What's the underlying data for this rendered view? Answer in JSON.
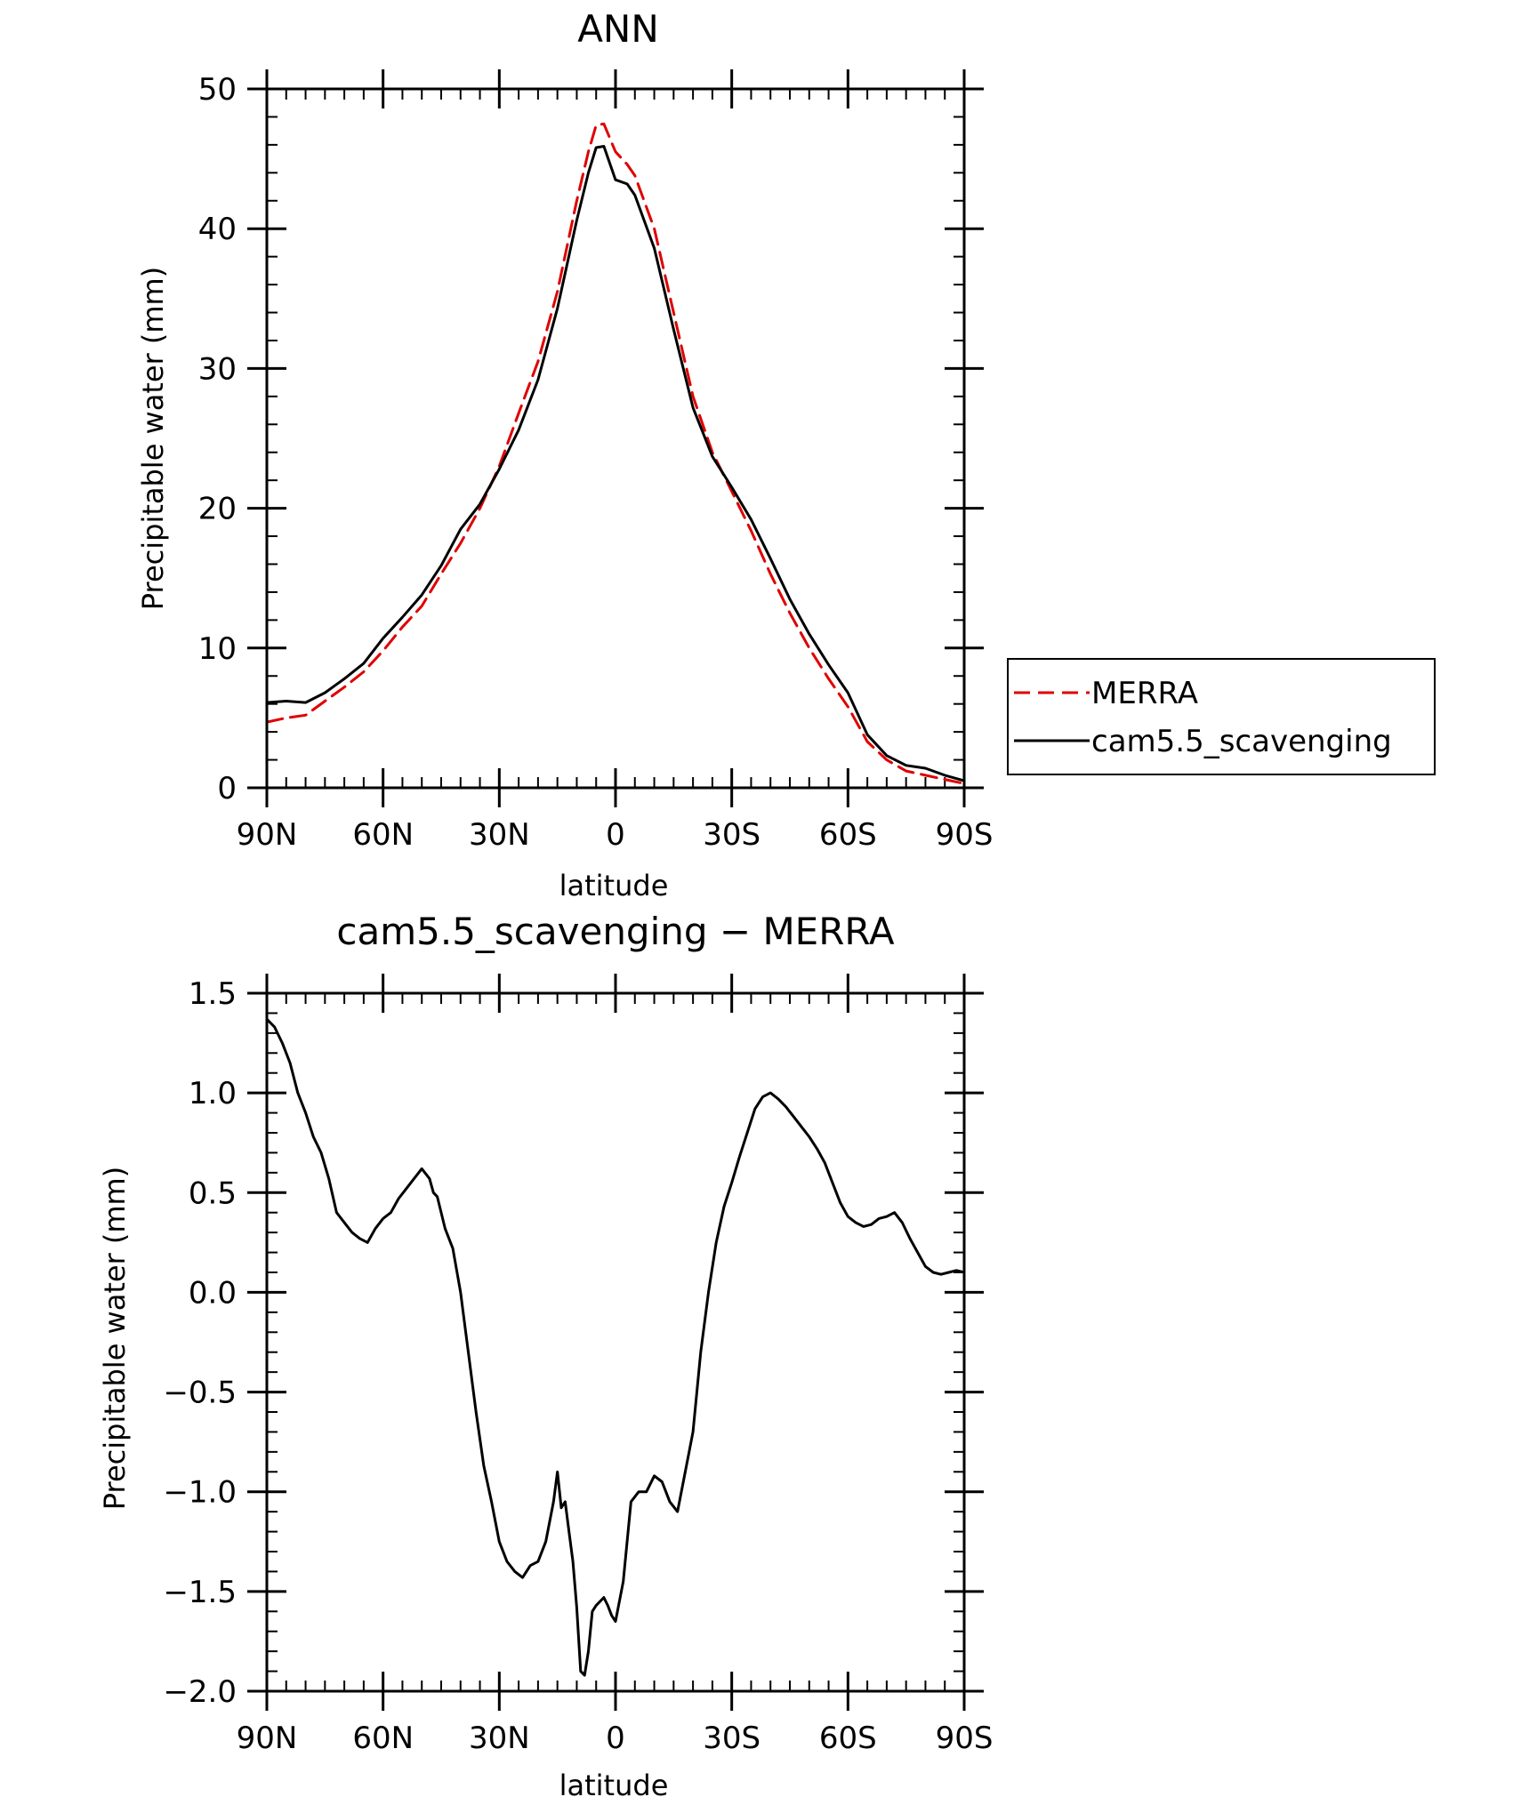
{
  "chart_data": [
    {
      "type": "line",
      "title": "ANN",
      "xlabel": "latitude",
      "ylabel": "Precipitable water (mm)",
      "xlim": [
        90,
        -90
      ],
      "ylim": [
        0,
        50
      ],
      "x_ticks": [
        90,
        60,
        30,
        0,
        -30,
        -60,
        -90
      ],
      "x_tick_labels": [
        "90N",
        "60N",
        "30N",
        "0",
        "30S",
        "60S",
        "90S"
      ],
      "y_ticks": [
        0,
        10,
        20,
        30,
        40,
        50
      ],
      "y_tick_labels": [
        "0",
        "10",
        "20",
        "30",
        "40",
        "50"
      ],
      "grid": false,
      "legend": "right",
      "series": [
        {
          "name": "MERRA",
          "color": "#e00000",
          "dash": "dashed",
          "x": [
            90,
            85,
            80,
            75,
            70,
            65,
            60,
            55,
            50,
            45,
            40,
            35,
            30,
            25,
            20,
            15,
            10,
            7,
            5,
            3,
            0,
            -3,
            -5,
            -10,
            -15,
            -20,
            -25,
            -30,
            -35,
            -40,
            -45,
            -50,
            -55,
            -60,
            -65,
            -70,
            -75,
            -80,
            -85,
            -90
          ],
          "values": [
            4.7,
            5.0,
            5.2,
            6.2,
            7.2,
            8.3,
            9.8,
            11.5,
            13.0,
            15.3,
            17.5,
            20.0,
            23.0,
            26.8,
            30.5,
            35.5,
            42.0,
            45.5,
            47.4,
            47.5,
            45.5,
            44.6,
            43.8,
            40.0,
            34.0,
            28.0,
            24.0,
            21.2,
            18.4,
            15.3,
            12.5,
            10.0,
            7.8,
            5.8,
            3.3,
            2.0,
            1.2,
            0.9,
            0.6,
            0.3
          ]
        },
        {
          "name": "cam5.5_scavenging",
          "color": "#000000",
          "dash": "solid",
          "x": [
            90,
            85,
            80,
            75,
            70,
            65,
            60,
            55,
            50,
            45,
            40,
            35,
            30,
            25,
            20,
            15,
            10,
            7,
            5,
            3,
            0,
            -3,
            -5,
            -10,
            -15,
            -20,
            -25,
            -30,
            -35,
            -40,
            -45,
            -50,
            -55,
            -60,
            -65,
            -70,
            -75,
            -80,
            -85,
            -90
          ],
          "values": [
            6.1,
            6.2,
            6.1,
            6.8,
            7.8,
            8.9,
            10.7,
            12.2,
            13.8,
            15.9,
            18.5,
            20.3,
            22.8,
            25.6,
            29.2,
            34.3,
            40.6,
            44.0,
            45.8,
            45.9,
            43.5,
            43.2,
            42.4,
            38.6,
            32.8,
            27.2,
            23.7,
            21.5,
            19.2,
            16.4,
            13.5,
            11.0,
            8.8,
            6.8,
            3.8,
            2.3,
            1.6,
            1.4,
            0.9,
            0.5
          ]
        }
      ]
    },
    {
      "type": "line",
      "title": "cam5.5_scavenging − MERRA",
      "xlabel": "latitude",
      "ylabel": "Precipitable water (mm)",
      "xlim": [
        90,
        -90
      ],
      "ylim": [
        -2.0,
        1.5
      ],
      "x_ticks": [
        90,
        60,
        30,
        0,
        -30,
        -60,
        -90
      ],
      "x_tick_labels": [
        "90N",
        "60N",
        "30N",
        "0",
        "30S",
        "60S",
        "90S"
      ],
      "y_ticks": [
        -2.0,
        -1.5,
        -1.0,
        -0.5,
        0.0,
        0.5,
        1.0,
        1.5
      ],
      "y_tick_labels": [
        "−2.0",
        "−1.5",
        "−1.0",
        "−0.5",
        "0.0",
        "0.5",
        "1.0",
        "1.5"
      ],
      "grid": false,
      "series": [
        {
          "color": "#000000",
          "dash": "solid",
          "x": [
            90,
            88,
            86,
            84,
            82,
            80,
            78,
            76,
            74,
            72,
            70,
            68,
            66,
            64,
            62,
            60,
            58,
            56,
            54,
            52,
            50,
            48,
            47,
            46,
            44,
            42,
            40,
            38,
            36,
            34,
            32,
            30,
            28,
            26,
            24,
            22,
            20,
            18,
            16,
            15,
            14,
            13,
            12,
            11,
            10,
            9,
            8,
            7,
            6,
            5,
            4,
            3,
            2,
            1,
            0,
            -2,
            -4,
            -6,
            -8,
            -10,
            -12,
            -14,
            -16,
            -18,
            -20,
            -22,
            -24,
            -26,
            -28,
            -30,
            -32,
            -34,
            -36,
            -38,
            -40,
            -42,
            -44,
            -46,
            -48,
            -50,
            -52,
            -54,
            -56,
            -58,
            -60,
            -62,
            -64,
            -66,
            -68,
            -70,
            -72,
            -74,
            -76,
            -78,
            -80,
            -82,
            -84,
            -86,
            -88,
            -90
          ],
          "values": [
            1.37,
            1.33,
            1.25,
            1.15,
            1.0,
            0.9,
            0.78,
            0.7,
            0.57,
            0.4,
            0.35,
            0.3,
            0.27,
            0.25,
            0.32,
            0.37,
            0.4,
            0.47,
            0.52,
            0.57,
            0.62,
            0.57,
            0.5,
            0.48,
            0.32,
            0.22,
            0.0,
            -0.3,
            -0.6,
            -0.87,
            -1.05,
            -1.25,
            -1.35,
            -1.4,
            -1.43,
            -1.37,
            -1.35,
            -1.25,
            -1.05,
            -0.9,
            -1.08,
            -1.05,
            -1.2,
            -1.35,
            -1.58,
            -1.9,
            -1.92,
            -1.8,
            -1.6,
            -1.57,
            -1.55,
            -1.53,
            -1.57,
            -1.62,
            -1.65,
            -1.45,
            -1.05,
            -1.0,
            -1.0,
            -0.92,
            -0.95,
            -1.05,
            -1.1,
            -0.9,
            -0.7,
            -0.3,
            0.0,
            0.25,
            0.43,
            0.55,
            0.68,
            0.8,
            0.92,
            0.98,
            1.0,
            0.97,
            0.93,
            0.88,
            0.83,
            0.78,
            0.72,
            0.65,
            0.55,
            0.45,
            0.38,
            0.35,
            0.33,
            0.34,
            0.37,
            0.38,
            0.4,
            0.35,
            0.27,
            0.2,
            0.13,
            0.1,
            0.09,
            0.1,
            0.11,
            0.1
          ]
        }
      ]
    }
  ]
}
